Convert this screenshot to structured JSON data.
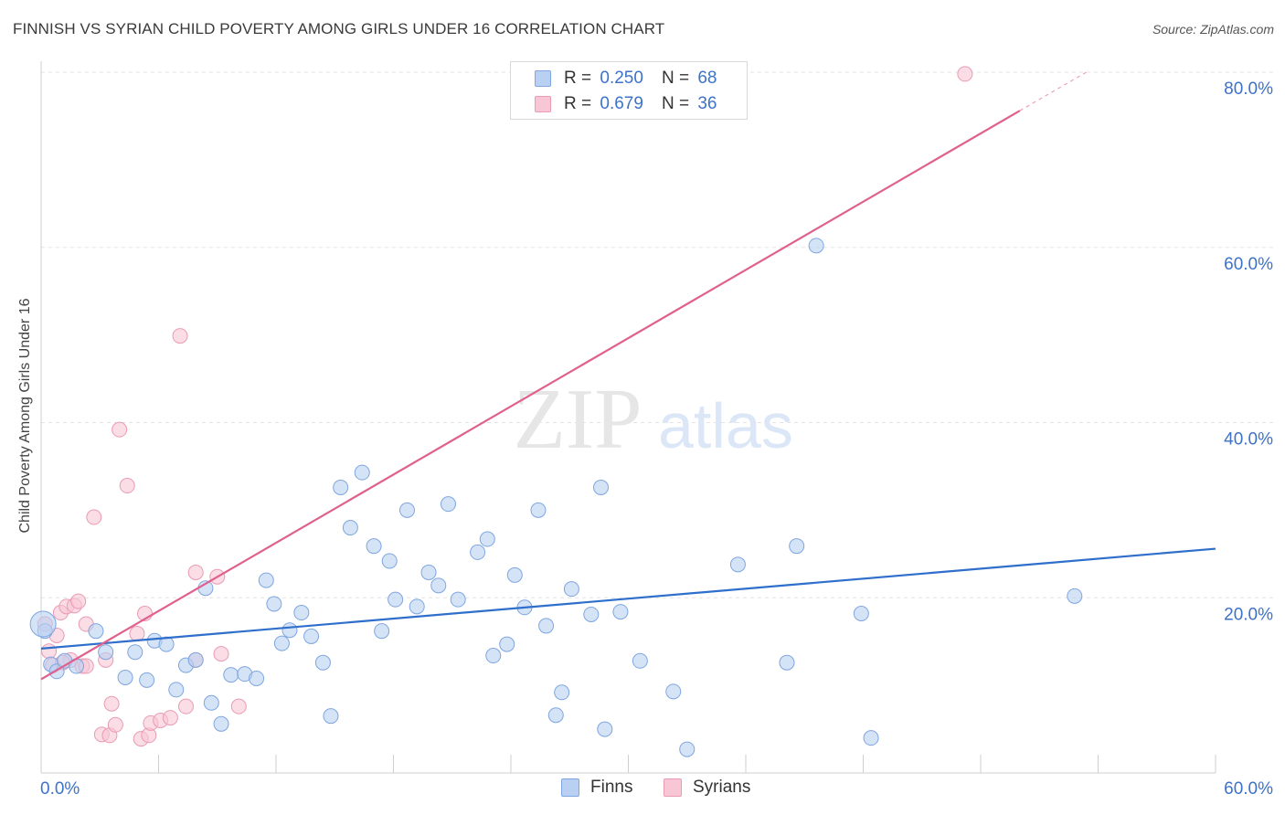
{
  "title": "FINNISH VS SYRIAN CHILD POVERTY AMONG GIRLS UNDER 16 CORRELATION CHART",
  "source": "Source: ZipAtlas.com",
  "watermark": {
    "zip": "ZIP",
    "atlas": "atlas"
  },
  "legend": {
    "finns": {
      "r_label": "R =",
      "r_value": "0.250",
      "n_label": "N =",
      "n_value": "68"
    },
    "syrians": {
      "r_label": "R =",
      "r_value": "0.679",
      "n_label": "N =",
      "n_value": "36"
    }
  },
  "bottom_legend": {
    "finns": "Finns",
    "syrians": "Syrians"
  },
  "colors": {
    "finns_fill": "#b9d0f2",
    "finns_stroke": "#7ea6e0",
    "finns_line": "#2f6fcc",
    "syrians_fill": "#f8c6d5",
    "syrians_stroke": "#e99bb4",
    "syrians_line": "#e0608d",
    "axis_text": "#3d72c9",
    "grid": "#e3e3e3"
  },
  "chart_data": {
    "type": "scatter",
    "title": "FINNISH VS SYRIAN CHILD POVERTY AMONG GIRLS UNDER 16 CORRELATION CHART",
    "xlabel": "",
    "ylabel": "Child Poverty Among Girls Under 16",
    "xlim": [
      0,
      60
    ],
    "ylim": [
      0,
      80
    ],
    "x_tick_labels": [
      "0.0%",
      "60.0%"
    ],
    "y_ticks": [
      20,
      40,
      60,
      80
    ],
    "y_tick_labels": [
      "20.0%",
      "40.0%",
      "60.0%",
      "80.0%"
    ],
    "grid": true,
    "series": [
      {
        "name": "Finns",
        "r": 0.25,
        "n": 68,
        "trend": {
          "x0": 0,
          "y0": 14.2,
          "x1": 60,
          "y1": 25.6
        },
        "points": [
          [
            0.2,
            16.2
          ],
          [
            0.5,
            12.4
          ],
          [
            0.8,
            11.6
          ],
          [
            1.2,
            12.8
          ],
          [
            1.8,
            12.2
          ],
          [
            2.8,
            16.2
          ],
          [
            3.3,
            13.8
          ],
          [
            4.3,
            10.9
          ],
          [
            4.8,
            13.8
          ],
          [
            5.4,
            10.6
          ],
          [
            5.8,
            15.1
          ],
          [
            6.4,
            14.7
          ],
          [
            6.9,
            9.5
          ],
          [
            7.4,
            12.3
          ],
          [
            7.9,
            12.9
          ],
          [
            8.4,
            21.1
          ],
          [
            8.7,
            8.0
          ],
          [
            9.2,
            5.6
          ],
          [
            9.7,
            11.2
          ],
          [
            10.4,
            11.3
          ],
          [
            11.0,
            10.8
          ],
          [
            11.5,
            22.0
          ],
          [
            11.9,
            19.3
          ],
          [
            12.3,
            14.8
          ],
          [
            12.7,
            16.3
          ],
          [
            13.3,
            18.3
          ],
          [
            13.8,
            15.6
          ],
          [
            14.4,
            12.6
          ],
          [
            14.8,
            6.5
          ],
          [
            15.3,
            32.6
          ],
          [
            15.8,
            28.0
          ],
          [
            16.4,
            34.3
          ],
          [
            17.0,
            25.9
          ],
          [
            17.4,
            16.2
          ],
          [
            17.8,
            24.2
          ],
          [
            18.1,
            19.8
          ],
          [
            18.7,
            30.0
          ],
          [
            19.2,
            19.0
          ],
          [
            19.8,
            22.9
          ],
          [
            20.3,
            21.4
          ],
          [
            20.8,
            30.7
          ],
          [
            21.3,
            19.8
          ],
          [
            22.3,
            25.2
          ],
          [
            22.8,
            26.7
          ],
          [
            23.1,
            13.4
          ],
          [
            23.8,
            14.7
          ],
          [
            24.2,
            22.6
          ],
          [
            24.7,
            18.9
          ],
          [
            25.4,
            30.0
          ],
          [
            25.8,
            16.8
          ],
          [
            26.3,
            6.6
          ],
          [
            26.6,
            9.2
          ],
          [
            27.1,
            21.0
          ],
          [
            28.1,
            18.1
          ],
          [
            28.6,
            32.6
          ],
          [
            28.8,
            5.0
          ],
          [
            29.6,
            18.4
          ],
          [
            30.6,
            12.8
          ],
          [
            32.3,
            9.3
          ],
          [
            33.0,
            2.7
          ],
          [
            35.6,
            23.8
          ],
          [
            38.1,
            12.6
          ],
          [
            38.6,
            25.9
          ],
          [
            39.6,
            60.2
          ],
          [
            41.9,
            18.2
          ],
          [
            42.4,
            4.0
          ],
          [
            52.8,
            20.2
          ],
          [
            0.1,
            17.0
          ]
        ]
      },
      {
        "name": "Syrians",
        "r": 0.679,
        "n": 36,
        "trend": {
          "x0": 0,
          "y0": 10.7,
          "x1": 50.0,
          "y1": 75.6
        },
        "trend_ext": {
          "x0": 50.0,
          "y0": 75.6,
          "x1": 53.4,
          "y1": 80.0
        },
        "points": [
          [
            0.2,
            17.0
          ],
          [
            0.4,
            13.9
          ],
          [
            0.6,
            12.3
          ],
          [
            0.8,
            15.7
          ],
          [
            1.0,
            18.3
          ],
          [
            1.3,
            19.0
          ],
          [
            1.5,
            12.9
          ],
          [
            1.7,
            19.1
          ],
          [
            1.9,
            19.6
          ],
          [
            2.1,
            12.2
          ],
          [
            2.3,
            17.0
          ],
          [
            2.7,
            29.2
          ],
          [
            3.1,
            4.4
          ],
          [
            3.3,
            12.9
          ],
          [
            3.5,
            4.3
          ],
          [
            3.6,
            7.9
          ],
          [
            3.8,
            5.5
          ],
          [
            4.0,
            39.2
          ],
          [
            4.4,
            32.8
          ],
          [
            4.9,
            15.9
          ],
          [
            5.1,
            3.9
          ],
          [
            5.3,
            18.2
          ],
          [
            5.5,
            4.3
          ],
          [
            5.6,
            5.7
          ],
          [
            6.1,
            6.0
          ],
          [
            6.6,
            6.3
          ],
          [
            7.1,
            49.9
          ],
          [
            7.4,
            7.6
          ],
          [
            7.9,
            12.9
          ],
          [
            7.9,
            22.9
          ],
          [
            9.0,
            22.4
          ],
          [
            9.2,
            13.6
          ],
          [
            10.1,
            7.6
          ],
          [
            47.2,
            79.8
          ],
          [
            1.1,
            12.6
          ],
          [
            2.3,
            12.2
          ]
        ]
      }
    ]
  }
}
